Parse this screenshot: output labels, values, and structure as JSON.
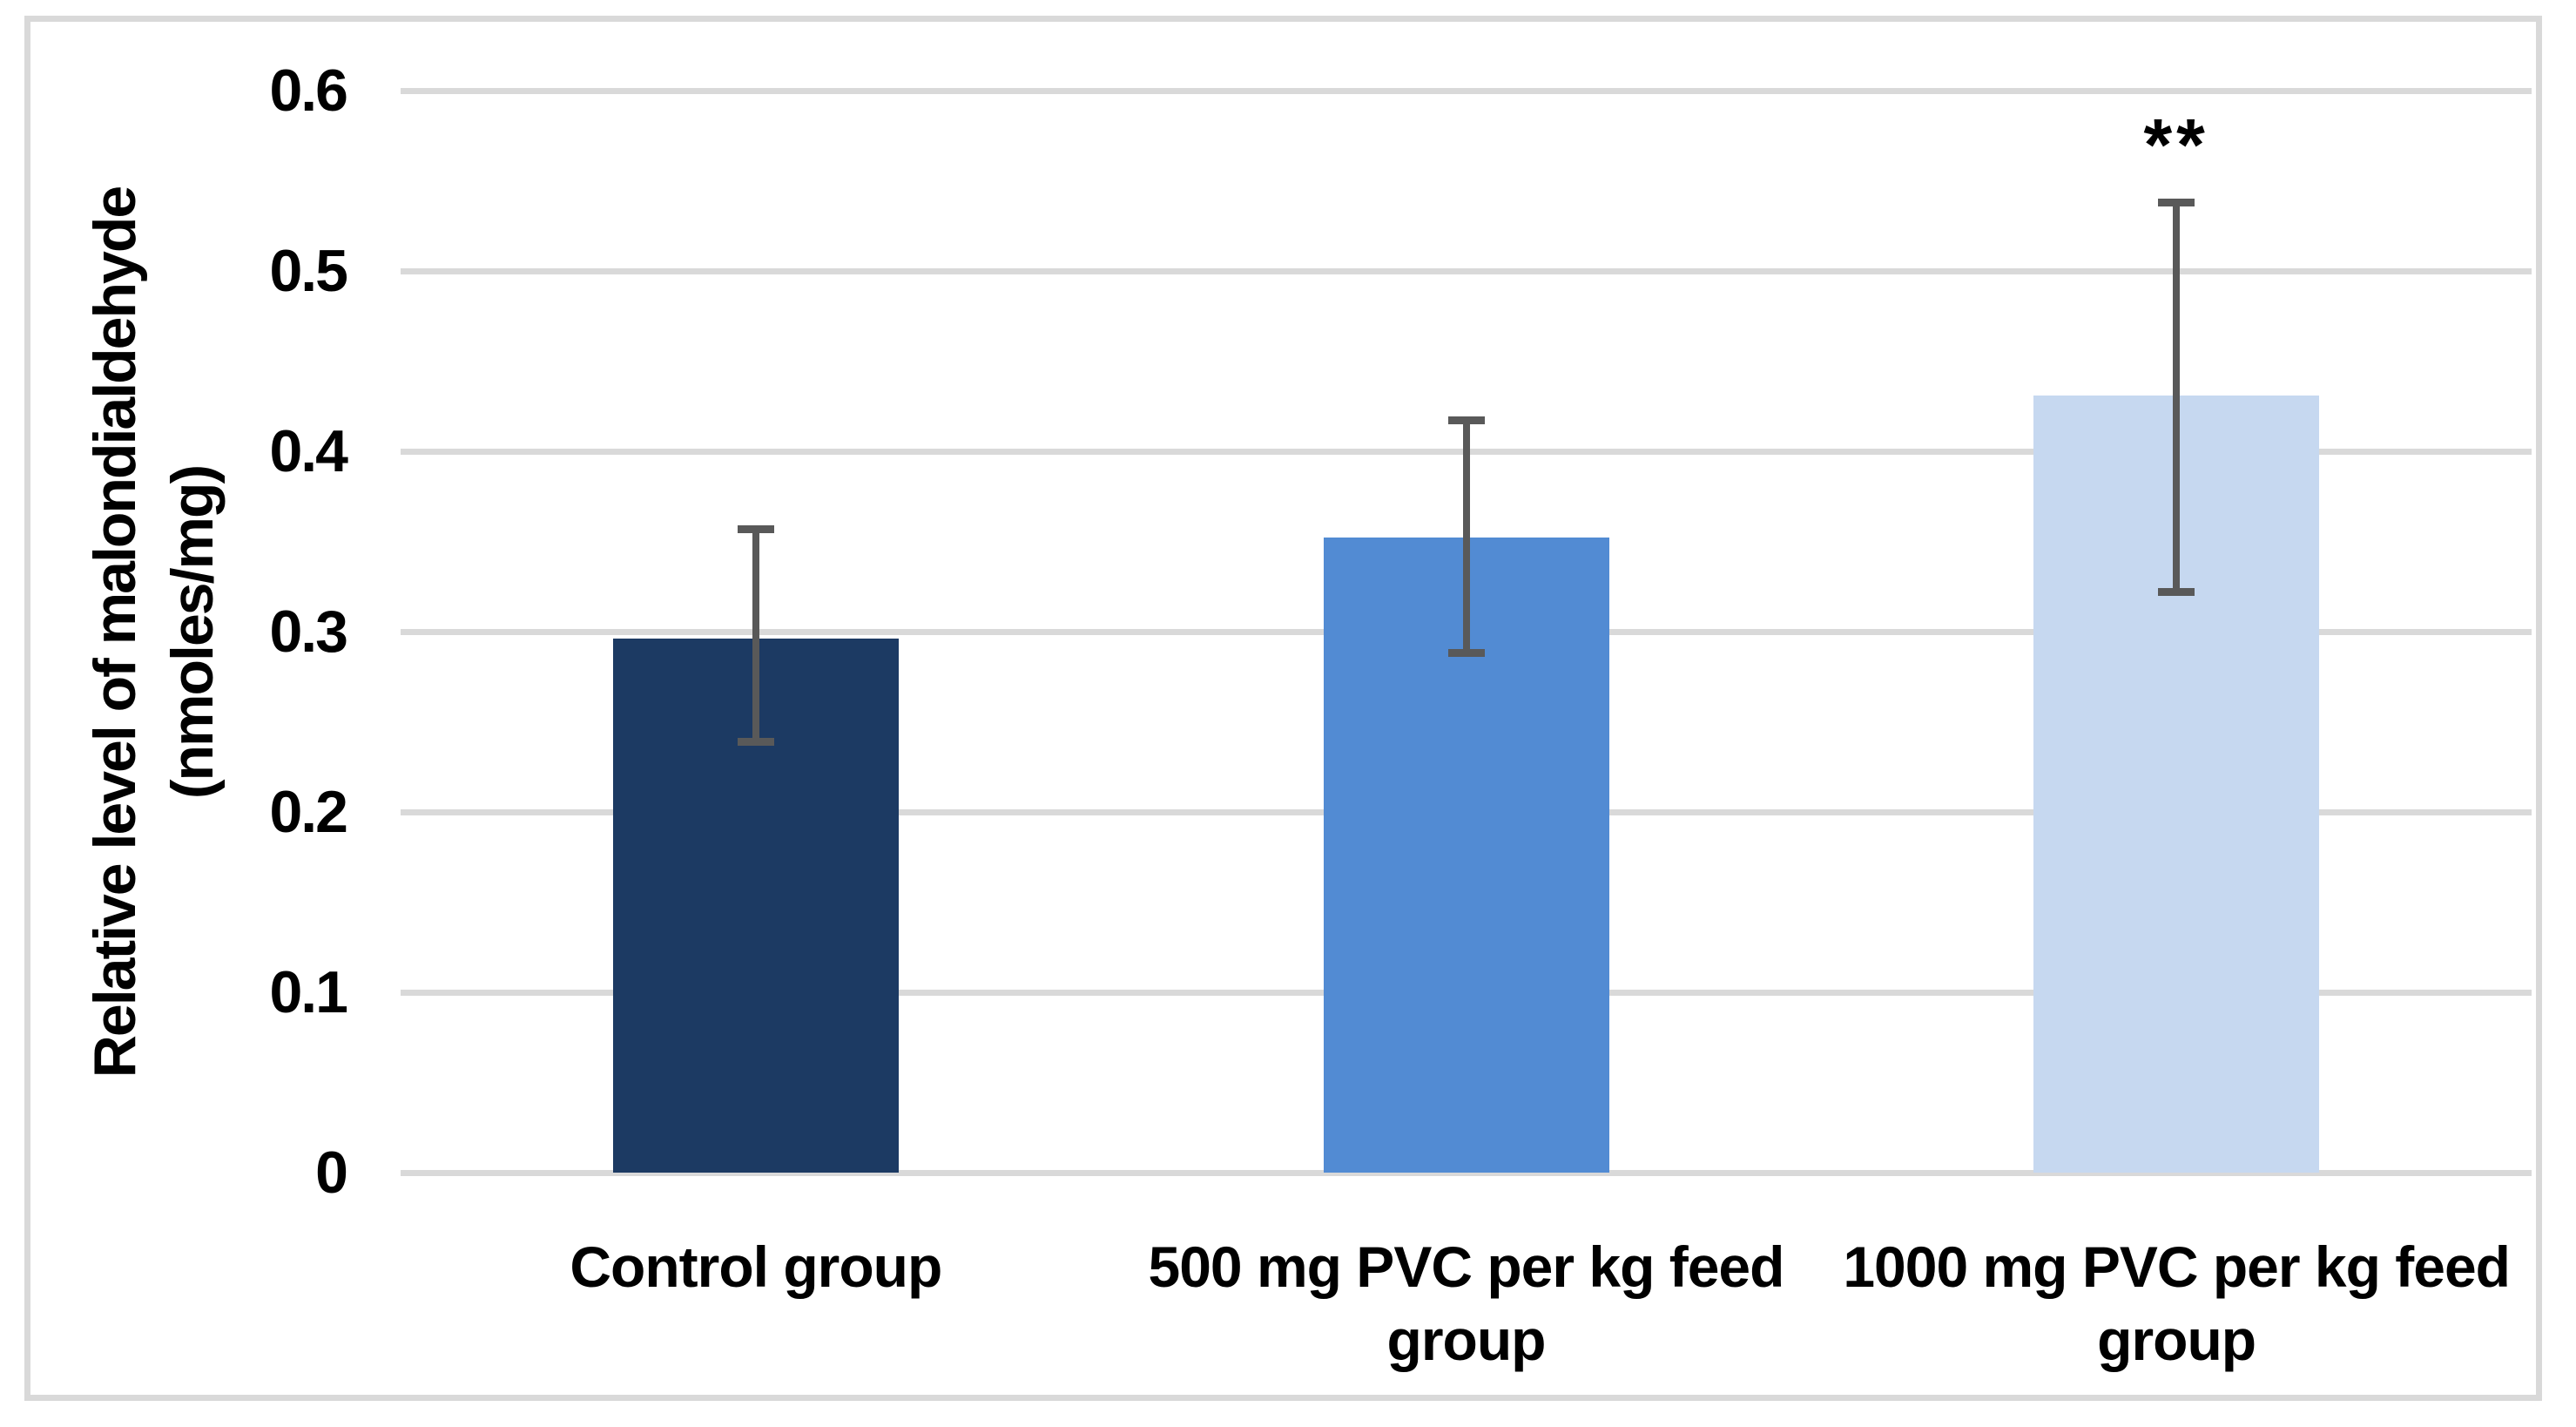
{
  "figure": {
    "background_color": "#ffffff",
    "frame_border_color": "#D9D9D9"
  },
  "chart_data": {
    "type": "bar",
    "title": "",
    "categories": [
      "Control group",
      "500 mg PVC per kg feed group",
      "1000 mg PVC per kg feed group"
    ],
    "values": [
      0.296,
      0.352,
      0.431
    ],
    "error_low": [
      0.239,
      0.288,
      0.322
    ],
    "error_high": [
      0.357,
      0.417,
      0.538
    ],
    "significance_labels": [
      "",
      "",
      "**"
    ],
    "ylabel": "Relative level of malondialdehyde (nmoles/mg)",
    "ylabel_lines": [
      "Relative level of malondialdehyde",
      "(nmoles/mg)"
    ],
    "xlabel": "",
    "ytick_labels": [
      "0",
      "0.1",
      "0.2",
      "0.3",
      "0.4",
      "0.5",
      "0.6"
    ],
    "yticks": [
      0,
      0.1,
      0.2,
      0.3,
      0.4,
      0.5,
      0.6
    ],
    "ylim": [
      0,
      0.6
    ],
    "grid": "horizontal",
    "legend": false,
    "bar_colors": [
      "#1C3A63",
      "#528BD3",
      "#C6D8F0"
    ],
    "error_bar_color": "#595959",
    "gridline_color": "#D9D9D9",
    "text_color": "#000000"
  }
}
